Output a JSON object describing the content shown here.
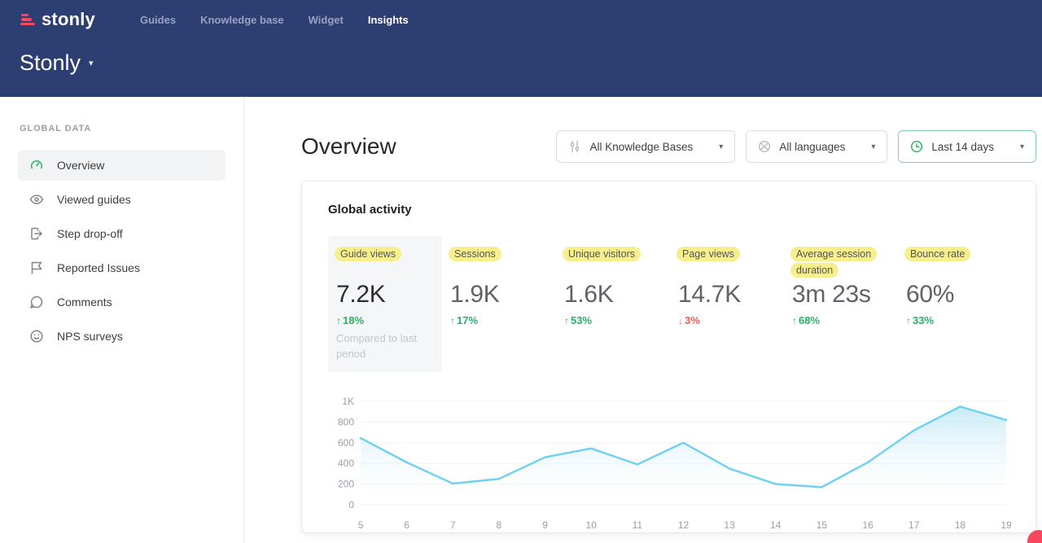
{
  "theme": {
    "navy": "#2d3e72",
    "nav_muted": "#97a1c1",
    "pink": "#f8485e",
    "green": "#24b364",
    "red": "#f55b4b",
    "yellow_hl": "#f7ef8d",
    "chart_line": "#72d1f0",
    "chart_fill_top": "#b5e4f6"
  },
  "navbar": {
    "logo_text": "stonly",
    "items": [
      {
        "label": "Guides"
      },
      {
        "label": "Knowledge base"
      },
      {
        "label": "Widget"
      },
      {
        "label": "Insights",
        "active": true
      }
    ],
    "workspace_title": "Stonly"
  },
  "sidebar": {
    "section_label": "GLOBAL DATA",
    "items": [
      {
        "label": "Overview",
        "icon": "gauge",
        "active": true
      },
      {
        "label": "Viewed guides",
        "icon": "eye"
      },
      {
        "label": "Step drop-off",
        "icon": "step-out"
      },
      {
        "label": "Reported Issues",
        "icon": "flag"
      },
      {
        "label": "Comments",
        "icon": "comment"
      },
      {
        "label": "NPS surveys",
        "icon": "smiley"
      }
    ]
  },
  "main": {
    "page_title": "Overview",
    "filters": [
      {
        "label": "All Knowledge Bases",
        "icon": "sliders"
      },
      {
        "label": "All languages",
        "icon": "globe"
      },
      {
        "label": "Last 14 days",
        "icon": "clock",
        "active": true
      }
    ],
    "card": {
      "title": "Global activity",
      "metrics": [
        {
          "label": "Guide views",
          "value": "7.2K",
          "change": "18%",
          "direction": "up",
          "note": "Compared to last period",
          "selected": true
        },
        {
          "label": "Sessions",
          "value": "1.9K",
          "change": "17%",
          "direction": "up"
        },
        {
          "label": "Unique visitors",
          "value": "1.6K",
          "change": "53%",
          "direction": "up"
        },
        {
          "label": "Page views",
          "value": "14.7K",
          "change": "3%",
          "direction": "down"
        },
        {
          "label": "Average session duration",
          "value": "3m 23s",
          "change": "68%",
          "direction": "up"
        },
        {
          "label": "Bounce rate",
          "value": "60%",
          "change": "33%",
          "direction": "up"
        }
      ]
    }
  },
  "chart_data": {
    "type": "area",
    "title": "",
    "x": [
      5,
      6,
      7,
      8,
      9,
      10,
      11,
      12,
      13,
      14,
      15,
      16,
      17,
      18,
      19
    ],
    "series": [
      {
        "name": "Guide views",
        "values": [
          645,
          410,
          205,
          250,
          460,
          545,
          390,
          600,
          350,
          200,
          170,
          410,
          720,
          950,
          820
        ]
      }
    ],
    "ylim": [
      0,
      1000
    ],
    "yticks": [
      {
        "value": 0,
        "label": "0"
      },
      {
        "value": 200,
        "label": "200"
      },
      {
        "value": 400,
        "label": "400"
      },
      {
        "value": 600,
        "label": "600"
      },
      {
        "value": 800,
        "label": "800"
      },
      {
        "value": 1000,
        "label": "1K"
      }
    ],
    "grid": "horizontal",
    "legend": "none"
  }
}
